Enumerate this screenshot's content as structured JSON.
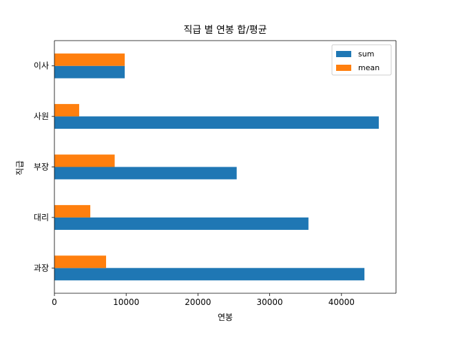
{
  "chart_data": {
    "type": "bar",
    "orientation": "horizontal",
    "title": "직급 별 연봉 합/평균",
    "xlabel": "연봉",
    "ylabel": "직급",
    "categories": [
      "과장",
      "대리",
      "부장",
      "사원",
      "이사"
    ],
    "series": [
      {
        "name": "sum",
        "color": "#1f77b4",
        "values": [
          43200,
          35400,
          25400,
          45200,
          9800
        ]
      },
      {
        "name": "mean",
        "color": "#ff7f0e",
        "values": [
          7200,
          5000,
          8400,
          3450,
          9800
        ]
      }
    ],
    "xlim": [
      0,
      47600
    ],
    "xticks": [
      0,
      10000,
      20000,
      30000,
      40000
    ],
    "xtick_labels": [
      "0",
      "10000",
      "20000",
      "30000",
      "40000"
    ],
    "grid": false,
    "legend": "top-right"
  }
}
